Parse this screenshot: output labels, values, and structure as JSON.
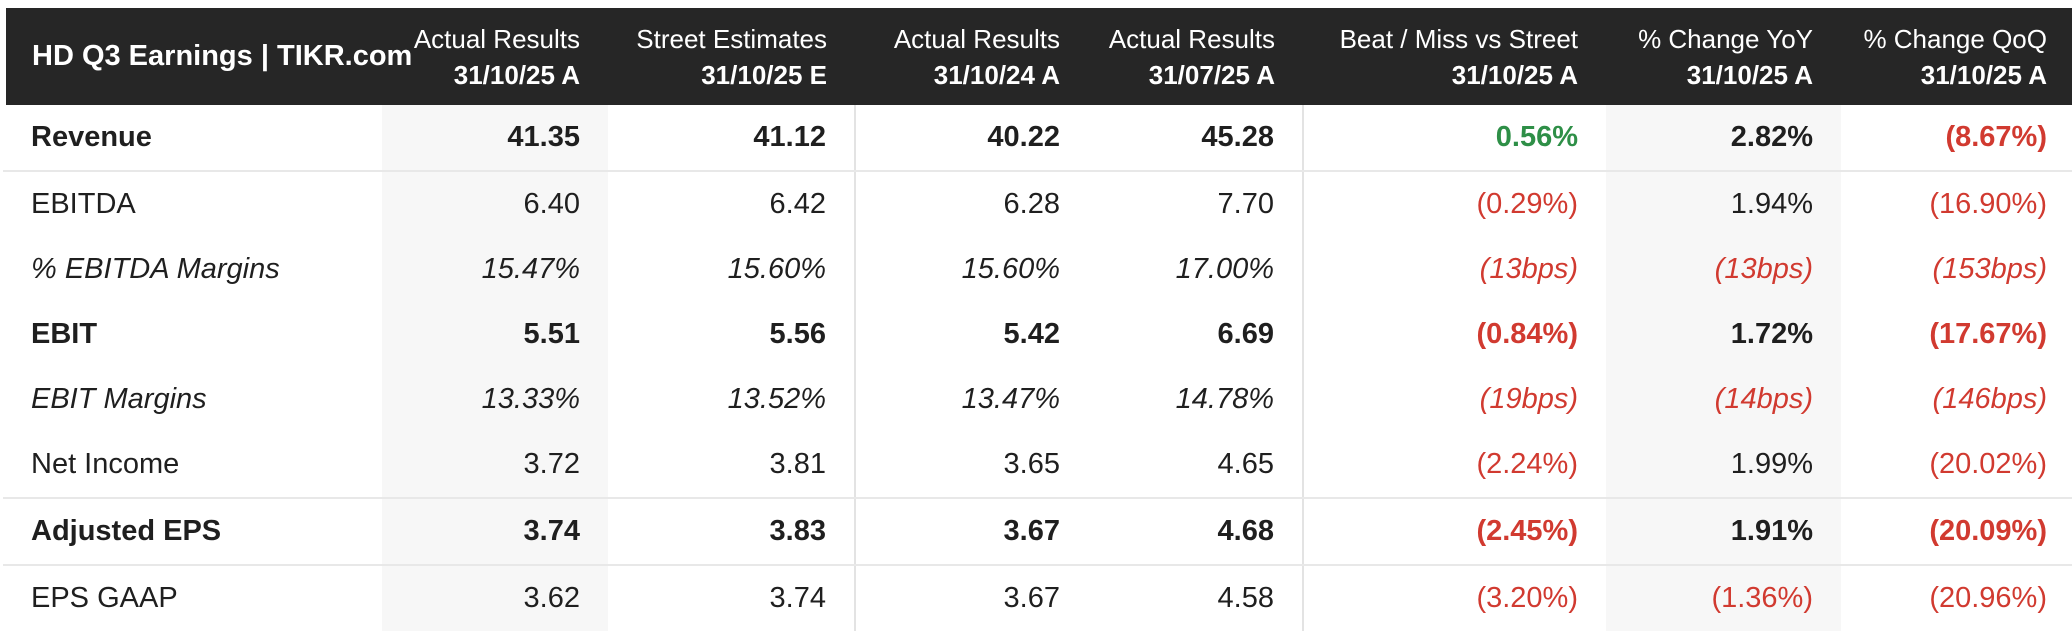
{
  "table": {
    "title": "HD Q3 Earnings | TIKR.com",
    "columns": [
      {
        "line1": "Actual Results",
        "line2": "31/10/25 A",
        "shaded": true
      },
      {
        "line1": "Street Estimates",
        "line2": "31/10/25 E",
        "shaded": false
      },
      {
        "line1": "Actual Results",
        "line2": "31/10/24 A",
        "shaded": false
      },
      {
        "line1": "Actual Results",
        "line2": "31/07/25 A",
        "shaded": false
      },
      {
        "line1": "Beat / Miss vs Street",
        "line2": "31/10/25 A",
        "shaded": false
      },
      {
        "line1": "% Change YoY",
        "line2": "31/10/25 A",
        "shaded": true
      },
      {
        "line1": "% Change QoQ",
        "line2": "31/10/25 A",
        "shaded": false
      }
    ],
    "rows": [
      {
        "label": "Revenue",
        "style": "bold",
        "divider_below": true,
        "values": [
          {
            "text": "41.35"
          },
          {
            "text": "41.12"
          },
          {
            "text": "40.22"
          },
          {
            "text": "45.28"
          },
          {
            "text": "0.56%",
            "color": "green"
          },
          {
            "text": "2.82%"
          },
          {
            "text": "(8.67%)",
            "color": "red"
          }
        ]
      },
      {
        "label": "EBITDA",
        "style": "regular",
        "divider_below": false,
        "values": [
          {
            "text": "6.40"
          },
          {
            "text": "6.42"
          },
          {
            "text": "6.28"
          },
          {
            "text": "7.70"
          },
          {
            "text": "(0.29%)",
            "color": "red"
          },
          {
            "text": "1.94%"
          },
          {
            "text": "(16.90%)",
            "color": "red"
          }
        ]
      },
      {
        "label": "% EBITDA Margins",
        "style": "italic",
        "divider_below": false,
        "values": [
          {
            "text": "15.47%"
          },
          {
            "text": "15.60%"
          },
          {
            "text": "15.60%"
          },
          {
            "text": "17.00%"
          },
          {
            "text": "(13bps)",
            "color": "red"
          },
          {
            "text": "(13bps)",
            "color": "red"
          },
          {
            "text": "(153bps)",
            "color": "red"
          }
        ]
      },
      {
        "label": "EBIT",
        "style": "bold",
        "divider_below": false,
        "values": [
          {
            "text": "5.51"
          },
          {
            "text": "5.56"
          },
          {
            "text": "5.42"
          },
          {
            "text": "6.69"
          },
          {
            "text": "(0.84%)",
            "color": "red"
          },
          {
            "text": "1.72%"
          },
          {
            "text": "(17.67%)",
            "color": "red"
          }
        ]
      },
      {
        "label": "EBIT Margins",
        "style": "italic",
        "divider_below": false,
        "values": [
          {
            "text": "13.33%"
          },
          {
            "text": "13.52%"
          },
          {
            "text": "13.47%"
          },
          {
            "text": "14.78%"
          },
          {
            "text": "(19bps)",
            "color": "red"
          },
          {
            "text": "(14bps)",
            "color": "red"
          },
          {
            "text": "(146bps)",
            "color": "red"
          }
        ]
      },
      {
        "label": "Net Income",
        "style": "regular",
        "divider_below": true,
        "values": [
          {
            "text": "3.72"
          },
          {
            "text": "3.81"
          },
          {
            "text": "3.65"
          },
          {
            "text": "4.65"
          },
          {
            "text": "(2.24%)",
            "color": "red"
          },
          {
            "text": "1.99%"
          },
          {
            "text": "(20.02%)",
            "color": "red"
          }
        ]
      },
      {
        "label": "Adjusted EPS",
        "style": "bold",
        "divider_below": true,
        "values": [
          {
            "text": "3.74"
          },
          {
            "text": "3.83"
          },
          {
            "text": "3.67"
          },
          {
            "text": "4.68"
          },
          {
            "text": "(2.45%)",
            "color": "red"
          },
          {
            "text": "1.91%"
          },
          {
            "text": "(20.09%)",
            "color": "red"
          }
        ]
      },
      {
        "label": "EPS GAAP",
        "style": "regular",
        "divider_below": false,
        "values": [
          {
            "text": "3.62"
          },
          {
            "text": "3.74"
          },
          {
            "text": "3.67"
          },
          {
            "text": "4.58"
          },
          {
            "text": "(3.20%)",
            "color": "red"
          },
          {
            "text": "(1.36%)",
            "color": "red"
          },
          {
            "text": "(20.96%)",
            "color": "red"
          }
        ]
      }
    ]
  },
  "colors": {
    "header_bg": "#262626",
    "positive_green": "#2e8f47",
    "negative_red": "#d13a30",
    "shaded_column_bg": "#f7f7f7",
    "row_divider": "#e8e8e8"
  },
  "chart_data": {
    "type": "table",
    "title": "HD Q3 Earnings | TIKR.com",
    "columns": [
      "Actual Results 31/10/25 A",
      "Street Estimates 31/10/25 E",
      "Actual Results 31/10/24 A",
      "Actual Results 31/07/25 A",
      "Beat / Miss vs Street 31/10/25 A",
      "% Change YoY 31/10/25 A",
      "% Change QoQ 31/10/25 A"
    ],
    "rows": [
      {
        "label": "Revenue",
        "values": [
          "41.35",
          "41.12",
          "40.22",
          "45.28",
          "0.56%",
          "2.82%",
          "(8.67%)"
        ]
      },
      {
        "label": "EBITDA",
        "values": [
          "6.40",
          "6.42",
          "6.28",
          "7.70",
          "(0.29%)",
          "1.94%",
          "(16.90%)"
        ]
      },
      {
        "label": "% EBITDA Margins",
        "values": [
          "15.47%",
          "15.60%",
          "15.60%",
          "17.00%",
          "(13bps)",
          "(13bps)",
          "(153bps)"
        ]
      },
      {
        "label": "EBIT",
        "values": [
          "5.51",
          "5.56",
          "5.42",
          "6.69",
          "(0.84%)",
          "1.72%",
          "(17.67%)"
        ]
      },
      {
        "label": "EBIT Margins",
        "values": [
          "13.33%",
          "13.52%",
          "13.47%",
          "14.78%",
          "(19bps)",
          "(14bps)",
          "(146bps)"
        ]
      },
      {
        "label": "Net Income",
        "values": [
          "3.72",
          "3.81",
          "3.65",
          "4.65",
          "(2.24%)",
          "1.99%",
          "(20.02%)"
        ]
      },
      {
        "label": "Adjusted EPS",
        "values": [
          "3.74",
          "3.83",
          "3.67",
          "4.68",
          "(2.45%)",
          "1.91%",
          "(20.09%)"
        ]
      },
      {
        "label": "EPS GAAP",
        "values": [
          "3.62",
          "3.74",
          "3.67",
          "4.58",
          "(3.20%)",
          "(1.36%)",
          "(20.96%)"
        ]
      }
    ]
  }
}
